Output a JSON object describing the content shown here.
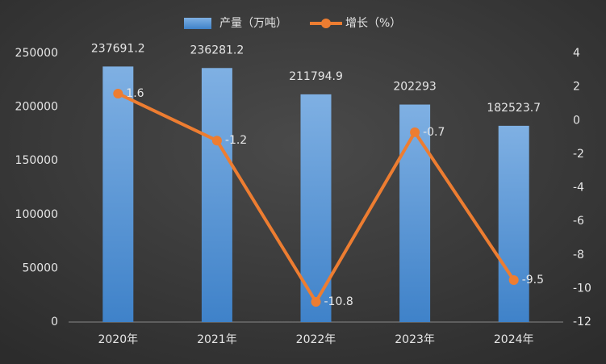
{
  "chart_data": {
    "type": "bar",
    "categories": [
      "2020年",
      "2021年",
      "2022年",
      "2023年",
      "2024年"
    ],
    "series": [
      {
        "name": "产量（万吨）",
        "color": "#5b9bd5",
        "values": [
          237691.2,
          236281.2,
          211794.9,
          202293,
          182523.7
        ]
      },
      {
        "name": "增长（%）",
        "color": "#ed7d31",
        "type": "line",
        "axis": "y2",
        "values": [
          1.6,
          -1.2,
          -10.8,
          -0.7,
          -9.5
        ]
      }
    ],
    "ylim": [
      0,
      250000
    ],
    "yticks": [
      0,
      50000,
      100000,
      150000,
      200000,
      250000
    ],
    "y2lim": [
      -12,
      4
    ],
    "y2ticks": [
      -12,
      -10,
      -8,
      -6,
      -4,
      -2,
      0,
      2,
      4
    ],
    "grid": false,
    "legend": "top"
  }
}
